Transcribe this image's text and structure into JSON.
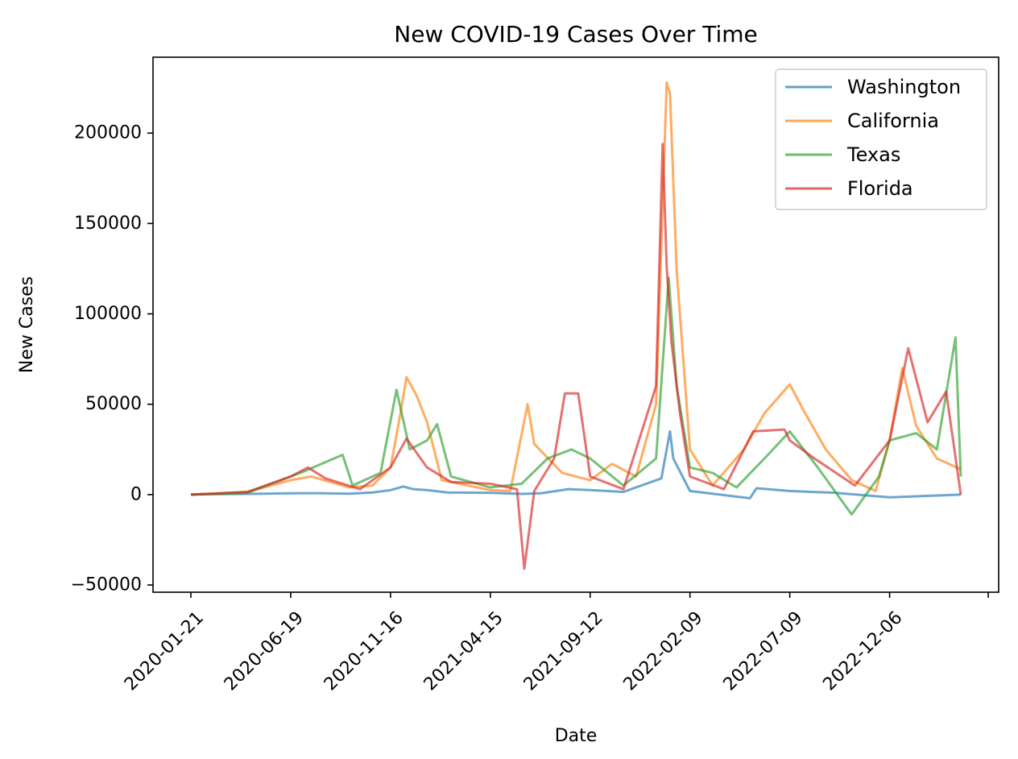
{
  "chart_data": {
    "type": "line",
    "title": "New COVID-19 Cases Over Time",
    "xlabel": "Date",
    "ylabel": "New Cases",
    "x_tick_labels": [
      "2020-01-21",
      "2020-06-19",
      "2020-11-16",
      "2021-04-15",
      "2021-09-12",
      "2022-02-09",
      "2022-07-09",
      "2022-12-06"
    ],
    "y_tick_labels": [
      "−50000",
      "0",
      "50000",
      "100000",
      "150000",
      "200000"
    ],
    "x_range": [
      "2020-01-21",
      "2023-03-23"
    ],
    "ylim": [
      -54000,
      242000
    ],
    "grid": false,
    "legend_position": "top-right",
    "series": [
      {
        "name": "Washington",
        "color": "#1f77b4",
        "points": [
          [
            "2020-01-21",
            0
          ],
          [
            "2020-03-01",
            300
          ],
          [
            "2020-04-15",
            400
          ],
          [
            "2020-06-19",
            700
          ],
          [
            "2020-08-01",
            800
          ],
          [
            "2020-09-15",
            500
          ],
          [
            "2020-10-20",
            1200
          ],
          [
            "2020-11-16",
            2500
          ],
          [
            "2020-12-05",
            4500
          ],
          [
            "2020-12-20",
            3000
          ],
          [
            "2021-01-10",
            2500
          ],
          [
            "2021-02-10",
            1200
          ],
          [
            "2021-04-15",
            1000
          ],
          [
            "2021-06-01",
            400
          ],
          [
            "2021-07-01",
            800
          ],
          [
            "2021-08-10",
            3000
          ],
          [
            "2021-09-12",
            2500
          ],
          [
            "2021-11-01",
            1500
          ],
          [
            "2021-12-28",
            9000
          ],
          [
            "2022-01-10",
            35000
          ],
          [
            "2022-01-15",
            20000
          ],
          [
            "2022-02-09",
            2000
          ],
          [
            "2022-03-15",
            500
          ],
          [
            "2022-05-10",
            -2000
          ],
          [
            "2022-05-20",
            3500
          ],
          [
            "2022-07-09",
            2000
          ],
          [
            "2022-09-15",
            1000
          ],
          [
            "2022-12-06",
            -1500
          ],
          [
            "2023-03-23",
            0
          ]
        ]
      },
      {
        "name": "California",
        "color": "#ff7f0e",
        "points": [
          [
            "2020-01-21",
            0
          ],
          [
            "2020-04-15",
            1500
          ],
          [
            "2020-06-19",
            8000
          ],
          [
            "2020-07-20",
            10000
          ],
          [
            "2020-09-15",
            4000
          ],
          [
            "2020-10-20",
            5000
          ],
          [
            "2020-11-16",
            15000
          ],
          [
            "2020-12-01",
            45000
          ],
          [
            "2020-12-10",
            65000
          ],
          [
            "2020-12-25",
            55000
          ],
          [
            "2021-01-10",
            40000
          ],
          [
            "2021-02-01",
            8000
          ],
          [
            "2021-04-15",
            2500
          ],
          [
            "2021-05-15",
            2000
          ],
          [
            "2021-06-10",
            50000
          ],
          [
            "2021-06-20",
            28000
          ],
          [
            "2021-08-01",
            12000
          ],
          [
            "2021-09-12",
            8000
          ],
          [
            "2021-10-15",
            17000
          ],
          [
            "2021-11-20",
            10000
          ],
          [
            "2021-12-20",
            50000
          ],
          [
            "2022-01-05",
            228000
          ],
          [
            "2022-01-10",
            222000
          ],
          [
            "2022-01-20",
            124000
          ],
          [
            "2022-02-09",
            25000
          ],
          [
            "2022-03-15",
            5000
          ],
          [
            "2022-05-01",
            25000
          ],
          [
            "2022-06-01",
            45000
          ],
          [
            "2022-07-09",
            61000
          ],
          [
            "2022-08-01",
            45000
          ],
          [
            "2022-09-01",
            25000
          ],
          [
            "2022-10-10",
            8000
          ],
          [
            "2022-11-15",
            2000
          ],
          [
            "2022-12-06",
            30000
          ],
          [
            "2022-12-25",
            70000
          ],
          [
            "2023-01-15",
            38000
          ],
          [
            "2023-02-15",
            20000
          ],
          [
            "2023-03-23",
            14000
          ]
        ]
      },
      {
        "name": "Texas",
        "color": "#2ca02c",
        "points": [
          [
            "2020-01-21",
            0
          ],
          [
            "2020-04-15",
            1000
          ],
          [
            "2020-06-19",
            10000
          ],
          [
            "2020-07-10",
            13000
          ],
          [
            "2020-09-05",
            22000
          ],
          [
            "2020-09-20",
            5000
          ],
          [
            "2020-11-01",
            12000
          ],
          [
            "2020-11-25",
            58000
          ],
          [
            "2020-12-15",
            25000
          ],
          [
            "2021-01-10",
            30000
          ],
          [
            "2021-01-25",
            39000
          ],
          [
            "2021-02-15",
            10000
          ],
          [
            "2021-04-15",
            4000
          ],
          [
            "2021-06-01",
            6000
          ],
          [
            "2021-07-10",
            20000
          ],
          [
            "2021-08-15",
            25000
          ],
          [
            "2021-09-12",
            20000
          ],
          [
            "2021-11-01",
            5000
          ],
          [
            "2021-12-20",
            20000
          ],
          [
            "2022-01-08",
            120000
          ],
          [
            "2022-01-20",
            60000
          ],
          [
            "2022-02-09",
            15000
          ],
          [
            "2022-03-15",
            12000
          ],
          [
            "2022-04-20",
            4000
          ],
          [
            "2022-06-01",
            20000
          ],
          [
            "2022-07-09",
            35000
          ],
          [
            "2022-08-20",
            15000
          ],
          [
            "2022-10-10",
            -11000
          ],
          [
            "2022-11-20",
            10000
          ],
          [
            "2022-12-06",
            30000
          ],
          [
            "2023-01-15",
            34000
          ],
          [
            "2023-02-15",
            25000
          ],
          [
            "2023-03-15",
            87000
          ],
          [
            "2023-03-23",
            10000
          ]
        ]
      },
      {
        "name": "Florida",
        "color": "#d62728",
        "points": [
          [
            "2020-01-21",
            0
          ],
          [
            "2020-04-15",
            1500
          ],
          [
            "2020-06-19",
            10000
          ],
          [
            "2020-07-15",
            15000
          ],
          [
            "2020-08-10",
            9000
          ],
          [
            "2020-10-01",
            3000
          ],
          [
            "2020-11-16",
            15000
          ],
          [
            "2020-12-10",
            31000
          ],
          [
            "2021-01-10",
            15000
          ],
          [
            "2021-02-15",
            7000
          ],
          [
            "2021-04-15",
            6000
          ],
          [
            "2021-05-25",
            3000
          ],
          [
            "2021-06-05",
            -41000
          ],
          [
            "2021-06-20",
            2000
          ],
          [
            "2021-07-20",
            20000
          ],
          [
            "2021-08-05",
            56000
          ],
          [
            "2021-08-25",
            56000
          ],
          [
            "2021-09-12",
            10000
          ],
          [
            "2021-11-01",
            3000
          ],
          [
            "2021-12-20",
            60000
          ],
          [
            "2021-12-30",
            194000
          ],
          [
            "2022-01-05",
            126000
          ],
          [
            "2022-01-12",
            85000
          ],
          [
            "2022-01-25",
            45000
          ],
          [
            "2022-02-09",
            10000
          ],
          [
            "2022-04-01",
            3000
          ],
          [
            "2022-05-15",
            35000
          ],
          [
            "2022-07-01",
            36000
          ],
          [
            "2022-07-09",
            30000
          ],
          [
            "2022-08-15",
            20000
          ],
          [
            "2022-10-15",
            5000
          ],
          [
            "2022-12-06",
            30000
          ],
          [
            "2023-01-03",
            81000
          ],
          [
            "2023-02-01",
            40000
          ],
          [
            "2023-03-01",
            57000
          ],
          [
            "2023-03-23",
            0
          ]
        ]
      }
    ]
  }
}
